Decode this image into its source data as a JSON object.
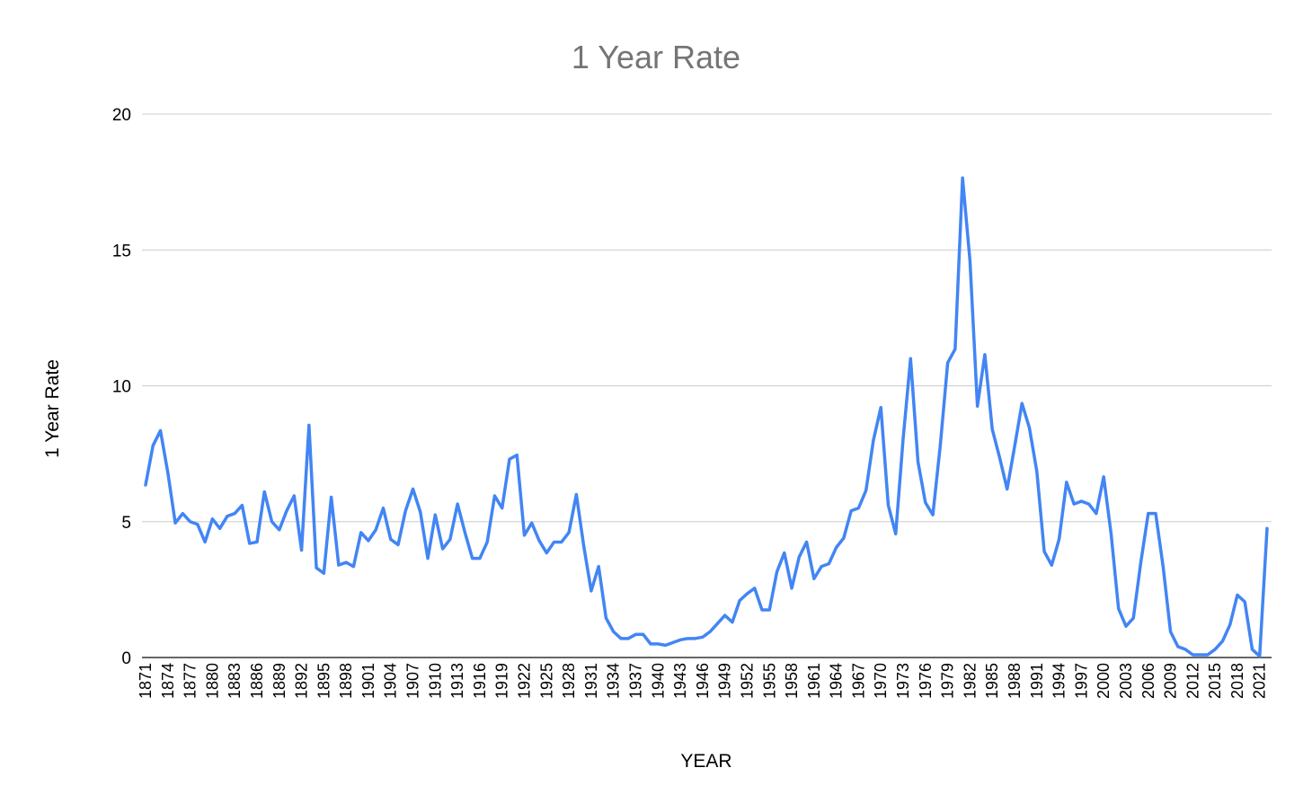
{
  "chart_data": {
    "type": "line",
    "title": "1 Year Rate",
    "xlabel": "YEAR",
    "ylabel": "1 Year Rate",
    "ylim": [
      0,
      20
    ],
    "yticks": [
      0,
      5,
      10,
      15,
      20
    ],
    "grid": true,
    "legend": "none",
    "line_color": "#4285f4",
    "x": [
      1871,
      1872,
      1873,
      1874,
      1875,
      1876,
      1877,
      1878,
      1879,
      1880,
      1881,
      1882,
      1883,
      1884,
      1885,
      1886,
      1887,
      1888,
      1889,
      1890,
      1891,
      1892,
      1893,
      1894,
      1895,
      1896,
      1897,
      1898,
      1899,
      1900,
      1901,
      1902,
      1903,
      1904,
      1905,
      1906,
      1907,
      1908,
      1909,
      1910,
      1911,
      1912,
      1913,
      1914,
      1915,
      1916,
      1917,
      1918,
      1919,
      1920,
      1921,
      1922,
      1923,
      1924,
      1925,
      1926,
      1927,
      1928,
      1929,
      1930,
      1931,
      1932,
      1933,
      1934,
      1935,
      1936,
      1937,
      1938,
      1939,
      1940,
      1941,
      1942,
      1943,
      1944,
      1945,
      1946,
      1947,
      1948,
      1949,
      1950,
      1951,
      1952,
      1953,
      1954,
      1955,
      1956,
      1957,
      1958,
      1959,
      1960,
      1961,
      1962,
      1963,
      1964,
      1965,
      1966,
      1967,
      1968,
      1969,
      1970,
      1971,
      1972,
      1973,
      1974,
      1975,
      1976,
      1977,
      1978,
      1979,
      1980,
      1981,
      1982,
      1983,
      1984,
      1985,
      1986,
      1987,
      1988,
      1989,
      1990,
      1991,
      1992,
      1993,
      1994,
      1995,
      1996,
      1997,
      1998,
      1999,
      2000,
      2001,
      2002,
      2003,
      2004,
      2005,
      2006,
      2007,
      2008,
      2009,
      2010,
      2011,
      2012,
      2013,
      2014,
      2015,
      2016,
      2017,
      2018,
      2019,
      2020,
      2021,
      2022
    ],
    "xticks": [
      1871,
      1874,
      1877,
      1880,
      1883,
      1886,
      1889,
      1892,
      1895,
      1898,
      1901,
      1904,
      1907,
      1910,
      1913,
      1916,
      1919,
      1922,
      1925,
      1928,
      1931,
      1934,
      1937,
      1940,
      1943,
      1946,
      1949,
      1952,
      1955,
      1958,
      1961,
      1964,
      1967,
      1970,
      1973,
      1976,
      1979,
      1982,
      1985,
      1988,
      1991,
      1994,
      1997,
      2000,
      2003,
      2006,
      2009,
      2012,
      2015,
      2018,
      2021
    ],
    "series": [
      {
        "values": [
          6.35,
          7.8,
          8.35,
          6.8,
          4.95,
          5.3,
          5.0,
          4.9,
          4.25,
          5.1,
          4.75,
          5.2,
          5.3,
          5.6,
          4.2,
          4.25,
          6.1,
          5.0,
          4.7,
          5.4,
          5.95,
          3.95,
          8.55,
          3.3,
          3.1,
          5.9,
          3.4,
          3.5,
          3.35,
          4.6,
          4.3,
          4.7,
          5.5,
          4.35,
          4.15,
          5.4,
          6.2,
          5.35,
          3.65,
          5.25,
          4.0,
          4.35,
          5.65,
          4.6,
          3.65,
          3.65,
          4.25,
          5.95,
          5.5,
          7.3,
          7.45,
          4.5,
          4.95,
          4.3,
          3.85,
          4.25,
          4.25,
          4.6,
          6.0,
          4.1,
          2.45,
          3.35,
          1.45,
          0.95,
          0.7,
          0.7,
          0.85,
          0.85,
          0.5,
          0.5,
          0.45,
          0.55,
          0.65,
          0.7,
          0.7,
          0.75,
          0.95,
          1.25,
          1.55,
          1.3,
          2.1,
          2.35,
          2.55,
          1.75,
          1.75,
          3.15,
          3.85,
          2.55,
          3.7,
          4.25,
          2.9,
          3.35,
          3.45,
          4.05,
          4.4,
          5.4,
          5.5,
          6.15,
          8.0,
          9.2,
          5.6,
          4.55,
          8.05,
          11.0,
          7.2,
          5.7,
          5.25,
          7.8,
          10.85,
          11.35,
          17.65,
          14.6,
          9.25,
          11.15,
          8.4,
          7.35,
          6.2,
          7.75,
          9.35,
          8.45,
          6.85,
          3.9,
          3.4,
          4.35,
          6.45,
          5.65,
          5.75,
          5.65,
          5.3,
          6.65,
          4.55,
          1.8,
          1.15,
          1.45,
          3.5,
          5.3,
          5.3,
          3.35,
          0.95,
          0.4,
          0.3,
          0.1,
          0.1,
          0.1,
          0.3,
          0.6,
          1.2,
          2.3,
          2.05,
          0.3,
          0.05,
          4.75
        ]
      }
    ]
  }
}
